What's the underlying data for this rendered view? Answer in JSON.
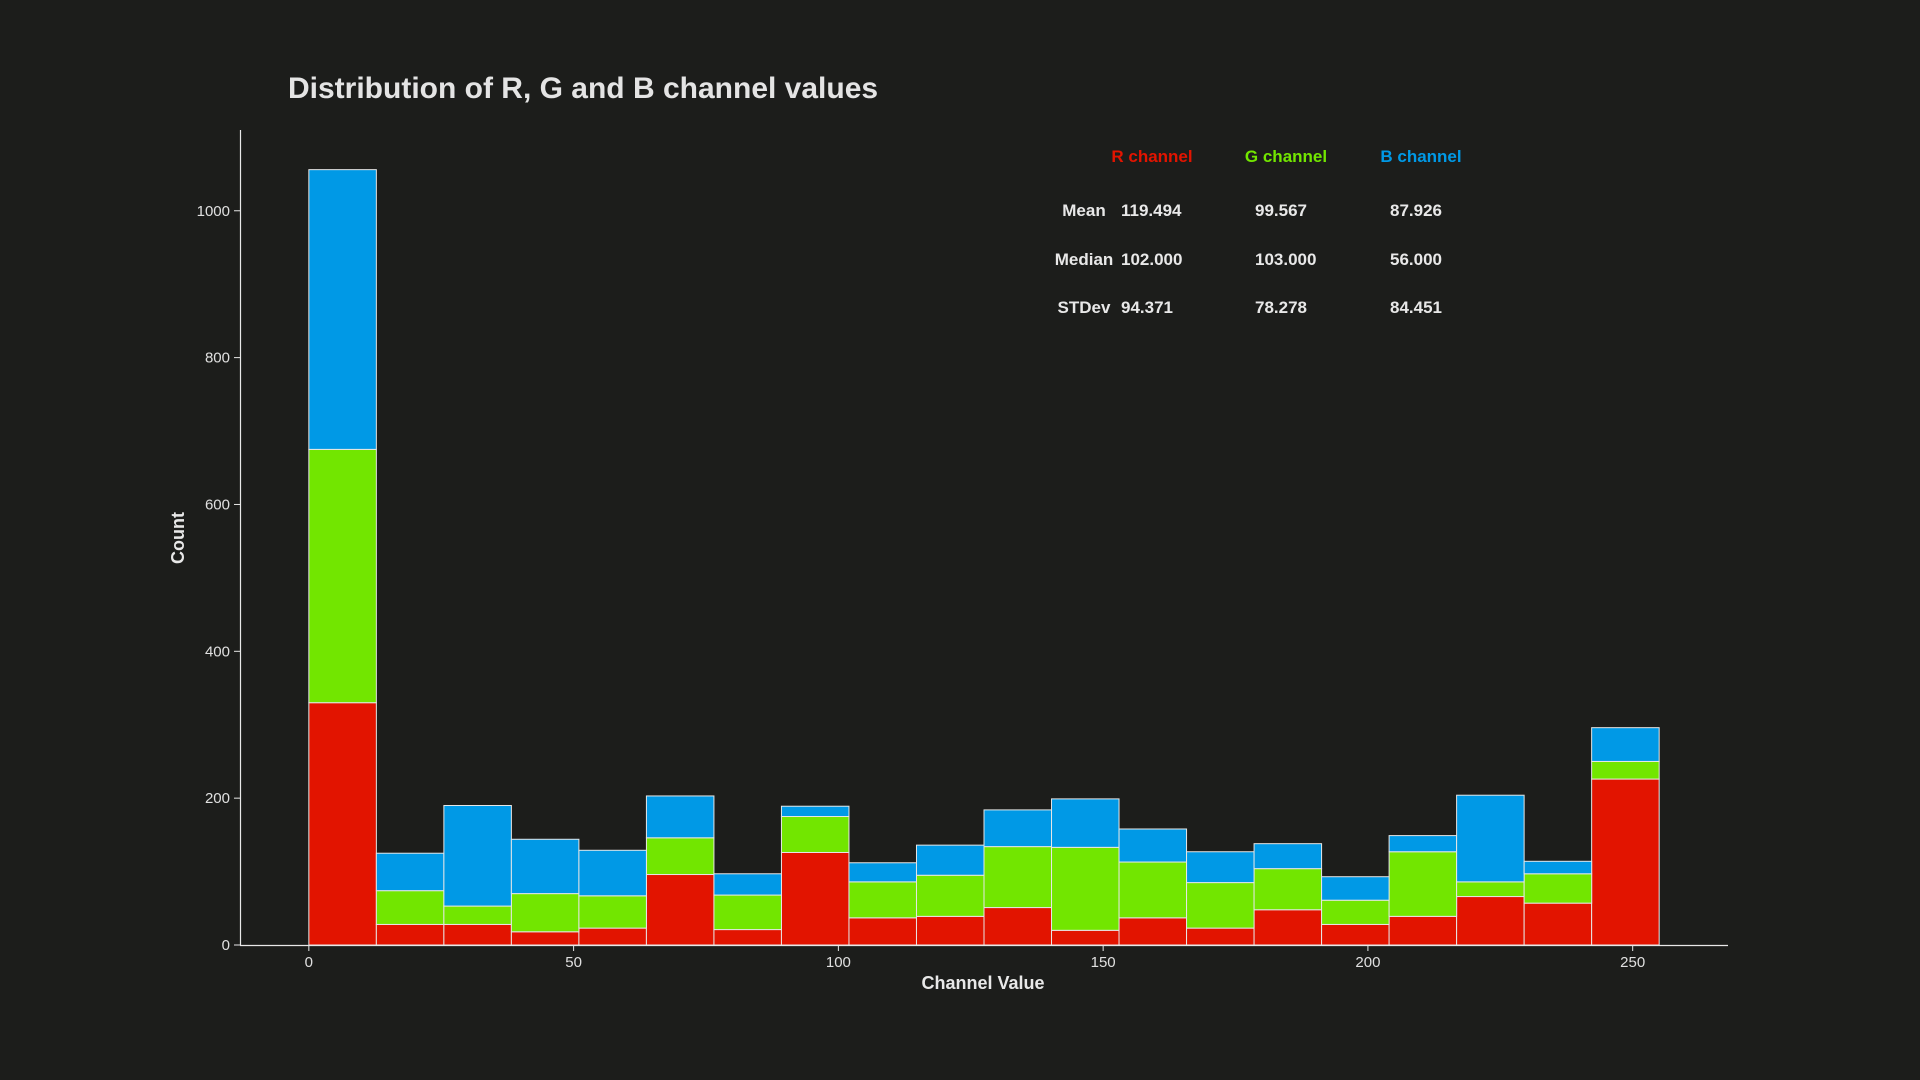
{
  "chart_data": {
    "type": "bar",
    "stacked": true,
    "title": "Distribution of R, G and B channel values",
    "xlabel": "Channel Value",
    "ylabel": "Count",
    "xlim": [
      -13,
      268
    ],
    "ylim": [
      0,
      1110
    ],
    "xticks": [
      0,
      50,
      100,
      150,
      200,
      250
    ],
    "yticks": [
      0,
      200,
      400,
      600,
      800,
      1000
    ],
    "bin_edges": [
      0,
      12.75,
      25.5,
      38.25,
      51,
      63.75,
      76.5,
      89.25,
      102,
      114.75,
      127.5,
      140.25,
      153,
      165.75,
      178.5,
      191.25,
      204,
      216.75,
      229.5,
      242.25,
      255
    ],
    "series": [
      {
        "name": "R channel",
        "color": "#e21400",
        "values": [
          330,
          28,
          28,
          18,
          23,
          96,
          21,
          126,
          37,
          39,
          51,
          20,
          37,
          23,
          48,
          28,
          39,
          66,
          57,
          226
        ]
      },
      {
        "name": "G channel",
        "color": "#72e600",
        "values": [
          345,
          46,
          25,
          52,
          44,
          50,
          47,
          49,
          49,
          56,
          83,
          113,
          76,
          62,
          56,
          33,
          88,
          20,
          40,
          24
        ]
      },
      {
        "name": "B channel",
        "color": "#0099e6",
        "values": [
          381,
          51,
          137,
          74,
          62,
          57,
          29,
          14,
          26,
          41,
          50,
          66,
          45,
          42,
          34,
          32,
          22,
          118,
          17,
          46
        ]
      }
    ],
    "stats_table": {
      "columns": [
        "R channel",
        "G channel",
        "B channel"
      ],
      "column_colors": [
        "#e21400",
        "#72e600",
        "#0099e6"
      ],
      "rows": [
        {
          "label": "Mean",
          "values": [
            "119.494",
            "99.567",
            "87.926"
          ]
        },
        {
          "label": "Median",
          "values": [
            "102.000",
            "103.000",
            "56.000"
          ]
        },
        {
          "label": "STDev",
          "values": [
            "94.371",
            "78.278",
            "84.451"
          ]
        }
      ]
    }
  }
}
